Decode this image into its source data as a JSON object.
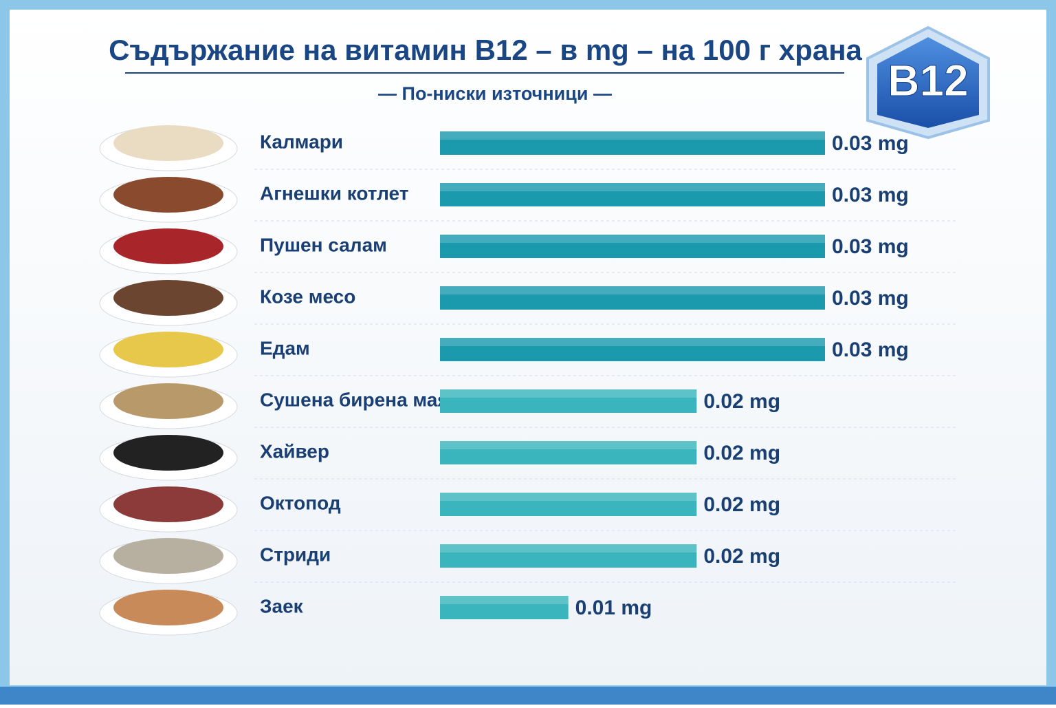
{
  "chart_data": {
    "type": "bar",
    "orientation": "horizontal",
    "title": "Съдържание на витамин B12 – в mg – на 100 г храна",
    "subtitle": "— По-ниски източници —",
    "badge": "B12",
    "categories": [
      "Калмари",
      "Агнешки котлет",
      "Пушен салам",
      "Козе месо",
      "Едам",
      "Сушена бирена мая",
      "Хайвер",
      "Октопод",
      "Стриди",
      "Заек"
    ],
    "values": [
      0.03,
      0.03,
      0.03,
      0.03,
      0.03,
      0.02,
      0.02,
      0.02,
      0.02,
      0.01
    ],
    "value_labels": [
      "0.03 mg",
      "0.03 mg",
      "0.03 mg",
      "0.03 mg",
      "0.03 mg",
      "0.02 mg",
      "0.02 mg",
      "0.02 mg",
      "0.02 mg",
      "0.01 mg"
    ],
    "colors": [
      "#1b9aae",
      "#1b9aae",
      "#1b9aae",
      "#1b9aae",
      "#1b9aae",
      "#3bb5bd",
      "#3bb5bd",
      "#3bb5bd",
      "#3bb5bd",
      "#3bb5bd"
    ]
  }
}
